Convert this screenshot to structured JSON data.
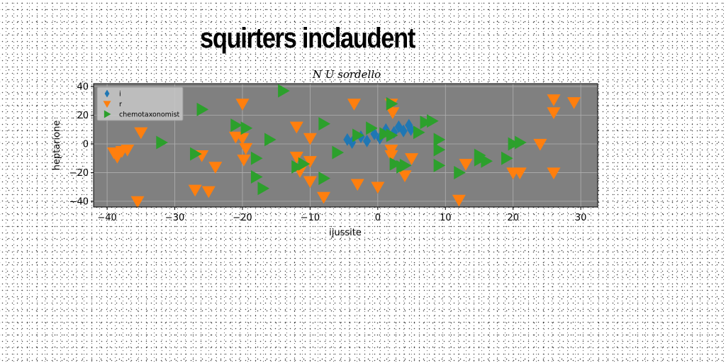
{
  "page": {
    "title": "squirters inclaudent"
  },
  "chart_data": {
    "type": "scatter",
    "title": "N U sordello",
    "xlabel": "ijussite",
    "ylabel": "heptarione",
    "xlim": [
      -42,
      32.5
    ],
    "ylim": [
      -44,
      42
    ],
    "xticks": [
      -40,
      -30,
      -20,
      -10,
      0,
      10,
      20,
      30
    ],
    "yticks": [
      -40,
      -20,
      0,
      20,
      40
    ],
    "grid": true,
    "legend_position": "top-left",
    "plot_background": "#808080",
    "series": [
      {
        "name": "i",
        "marker": "diamond",
        "color": "#1f77b4",
        "points": [
          [
            -4.5,
            3
          ],
          [
            -3.8,
            1
          ],
          [
            -2.5,
            5
          ],
          [
            -1.6,
            2
          ],
          [
            -0.5,
            7
          ],
          [
            0.3,
            4
          ],
          [
            1.2,
            10
          ],
          [
            2.4,
            8
          ],
          [
            3.1,
            12
          ],
          [
            3.8,
            9
          ],
          [
            4.6,
            13
          ],
          [
            4.9,
            10
          ]
        ]
      },
      {
        "name": "r",
        "marker": "triangle-down",
        "color": "#ff7f0e",
        "points": [
          [
            -39,
            -6
          ],
          [
            -38.5,
            -9
          ],
          [
            -37.8,
            -5
          ],
          [
            -37,
            -4
          ],
          [
            -35,
            8
          ],
          [
            -35.5,
            -40
          ],
          [
            -27,
            -32
          ],
          [
            -26,
            -8
          ],
          [
            -25,
            -33
          ],
          [
            -24,
            -16
          ],
          [
            -20,
            28
          ],
          [
            -21,
            5
          ],
          [
            -20,
            4
          ],
          [
            -19.5,
            -3
          ],
          [
            -19.8,
            -11
          ],
          [
            -12,
            12
          ],
          [
            -12,
            -9
          ],
          [
            -11.5,
            -19
          ],
          [
            -10,
            4
          ],
          [
            -10,
            -12
          ],
          [
            -10,
            -26
          ],
          [
            -8,
            -37
          ],
          [
            -3,
            -28
          ],
          [
            0,
            -30
          ],
          [
            2,
            -4
          ],
          [
            2.2,
            22
          ],
          [
            2,
            -8
          ],
          [
            2,
            28
          ],
          [
            4,
            -22
          ],
          [
            5,
            -10
          ],
          [
            12,
            -39
          ],
          [
            13,
            -14
          ],
          [
            20,
            -20
          ],
          [
            21,
            -20
          ],
          [
            24,
            0
          ],
          [
            26,
            31
          ],
          [
            26,
            22
          ],
          [
            26,
            -20
          ],
          [
            29,
            29
          ],
          [
            -3.5,
            28
          ]
        ]
      },
      {
        "name": "chemotaxonomist",
        "marker": "triangle-right",
        "color": "#2ca02c",
        "points": [
          [
            -32,
            1
          ],
          [
            -27,
            -7
          ],
          [
            -26,
            24
          ],
          [
            -21,
            13
          ],
          [
            -19.5,
            11
          ],
          [
            -18,
            -10
          ],
          [
            -18,
            -23
          ],
          [
            -17,
            -31
          ],
          [
            -16,
            3
          ],
          [
            -14,
            37
          ],
          [
            -11,
            -14
          ],
          [
            -8,
            14
          ],
          [
            -8,
            -24
          ],
          [
            -6,
            -6
          ],
          [
            -3,
            6
          ],
          [
            -1,
            11
          ],
          [
            1,
            7
          ],
          [
            2,
            6
          ],
          [
            2,
            28
          ],
          [
            2.5,
            -14
          ],
          [
            3.5,
            -16
          ],
          [
            4,
            -15
          ],
          [
            6,
            8
          ],
          [
            7,
            15
          ],
          [
            8,
            16
          ],
          [
            9,
            3
          ],
          [
            9,
            -4
          ],
          [
            9,
            -15
          ],
          [
            12,
            -20
          ],
          [
            15,
            -8
          ],
          [
            15,
            -11
          ],
          [
            16,
            -12
          ],
          [
            19,
            -10
          ],
          [
            20,
            0
          ],
          [
            21,
            1
          ],
          [
            -12,
            -16
          ]
        ]
      }
    ]
  }
}
